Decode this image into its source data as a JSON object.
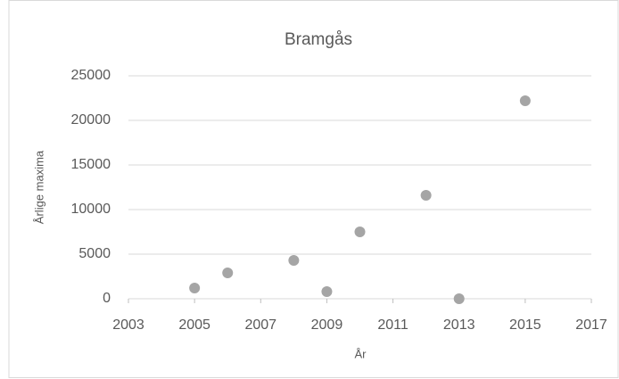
{
  "chart_data": {
    "type": "scatter",
    "title": "Bramgås",
    "x_label": "År",
    "y_label": "Årlige maxima",
    "x": [
      2005,
      2006,
      2008,
      2009,
      2010,
      2012,
      2013,
      2015
    ],
    "values": [
      1200,
      2900,
      4300,
      800,
      7500,
      11600,
      0,
      22200
    ],
    "color": "#a5a5a5",
    "xlim": [
      2003,
      2017
    ],
    "xticks": [
      2003,
      2005,
      2007,
      2009,
      2011,
      2013,
      2015,
      2017
    ],
    "ylim": [
      0,
      25000
    ],
    "yticks": [
      0,
      5000,
      10000,
      15000,
      20000,
      25000
    ],
    "grid": true
  }
}
